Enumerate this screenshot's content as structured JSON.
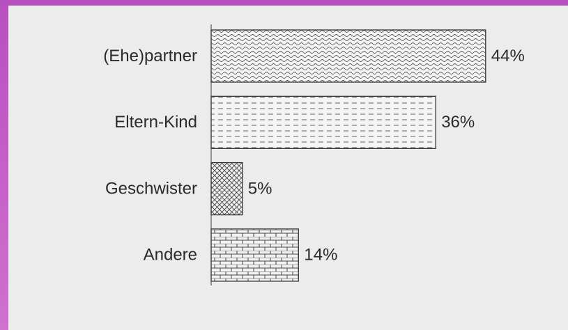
{
  "chart_data": {
    "type": "bar",
    "orientation": "horizontal",
    "categories": [
      "(Ehe)partner",
      "Eltern-Kind",
      "Geschwister",
      "Andere"
    ],
    "values": [
      44,
      36,
      5,
      14
    ],
    "value_labels": [
      "44%",
      "36%",
      "5%",
      "14%"
    ]
  }
}
